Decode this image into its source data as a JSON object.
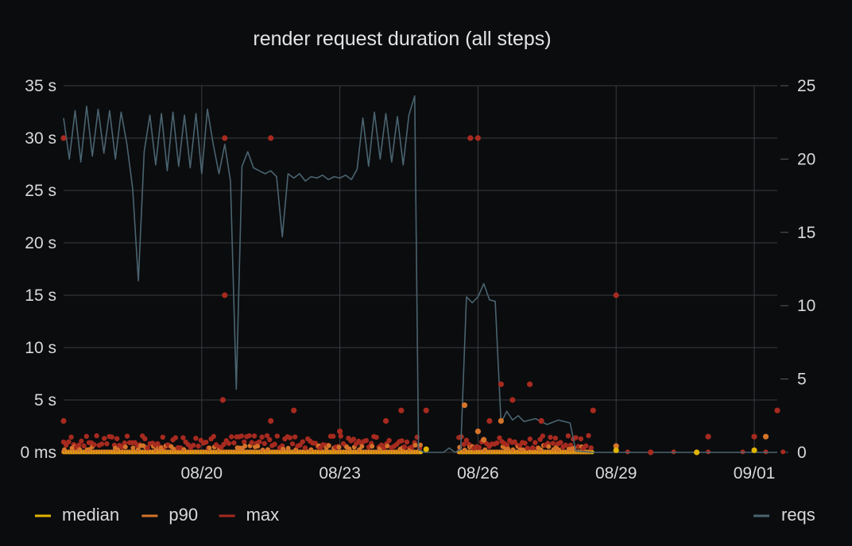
{
  "chart_data": {
    "type": "scatter",
    "title": "render request duration (all steps)",
    "xlabel": "",
    "ylabel": "",
    "y_left": {
      "unit": "s",
      "ylim": [
        0,
        35
      ],
      "ticks": [
        0,
        5,
        10,
        15,
        20,
        25,
        30,
        35
      ],
      "tick_labels": [
        "0 ms",
        "5 s",
        "10 s",
        "15 s",
        "20 s",
        "25 s",
        "30 s",
        "35 s"
      ]
    },
    "y_right": {
      "ylim": [
        0,
        25
      ],
      "ticks": [
        0,
        5,
        10,
        15,
        20,
        25
      ],
      "tick_labels": [
        "0",
        "5",
        "10",
        "15",
        "20",
        "25"
      ]
    },
    "x_axis": {
      "type": "date",
      "xlim": [
        "2023-08-17T00:00",
        "2023-09-01T12:00"
      ],
      "ticks": [
        "2023-08-20",
        "2023-08-23",
        "2023-08-26",
        "2023-08-29",
        "2023-09-01"
      ],
      "tick_labels": [
        "08/20",
        "08/23",
        "08/26",
        "08/29",
        "09/01"
      ]
    },
    "grid": true,
    "legend_left": [
      "median",
      "p90",
      "max"
    ],
    "legend_right": [
      "reqs"
    ],
    "legend_placement": "bottom",
    "colors": {
      "median": "#e0b400",
      "p90": "#d4742a",
      "max": "#a62a1f",
      "reqs": "#4a6470"
    },
    "series": [
      {
        "name": "reqs",
        "axis": "right",
        "style": "line",
        "points": [
          [
            "2023-08-17T00:00",
            22.8
          ],
          [
            "2023-08-17T03:00",
            20.0
          ],
          [
            "2023-08-17T06:00",
            23.3
          ],
          [
            "2023-08-17T09:00",
            19.8
          ],
          [
            "2023-08-17T12:00",
            23.6
          ],
          [
            "2023-08-17T15:00",
            20.2
          ],
          [
            "2023-08-17T18:00",
            23.4
          ],
          [
            "2023-08-17T21:00",
            20.4
          ],
          [
            "2023-08-18T00:00",
            23.3
          ],
          [
            "2023-08-18T03:00",
            20.0
          ],
          [
            "2023-08-18T06:00",
            23.2
          ],
          [
            "2023-08-18T09:00",
            21.0
          ],
          [
            "2023-08-18T12:00",
            18.0
          ],
          [
            "2023-08-18T15:00",
            11.7
          ],
          [
            "2023-08-18T18:00",
            20.5
          ],
          [
            "2023-08-18T21:00",
            23.0
          ],
          [
            "2023-08-19T00:00",
            19.6
          ],
          [
            "2023-08-19T03:00",
            23.1
          ],
          [
            "2023-08-19T06:00",
            19.2
          ],
          [
            "2023-08-19T09:00",
            23.2
          ],
          [
            "2023-08-19T12:00",
            19.5
          ],
          [
            "2023-08-19T15:00",
            23.0
          ],
          [
            "2023-08-19T18:00",
            19.4
          ],
          [
            "2023-08-19T21:00",
            23.1
          ],
          [
            "2023-08-20T00:00",
            19.0
          ],
          [
            "2023-08-20T03:00",
            23.4
          ],
          [
            "2023-08-20T06:00",
            21.0
          ],
          [
            "2023-08-20T09:00",
            19.0
          ],
          [
            "2023-08-20T12:00",
            21.0
          ],
          [
            "2023-08-20T15:00",
            18.5
          ],
          [
            "2023-08-20T18:00",
            4.3
          ],
          [
            "2023-08-20T21:00",
            19.5
          ],
          [
            "2023-08-21T00:00",
            20.5
          ],
          [
            "2023-08-21T03:00",
            19.4
          ],
          [
            "2023-08-21T06:00",
            19.2
          ],
          [
            "2023-08-21T09:00",
            19.0
          ],
          [
            "2023-08-21T12:00",
            19.2
          ],
          [
            "2023-08-21T15:00",
            18.8
          ],
          [
            "2023-08-21T18:00",
            14.7
          ],
          [
            "2023-08-21T21:00",
            19.0
          ],
          [
            "2023-08-22T00:00",
            18.7
          ],
          [
            "2023-08-22T03:00",
            19.0
          ],
          [
            "2023-08-22T06:00",
            18.5
          ],
          [
            "2023-08-22T09:00",
            18.8
          ],
          [
            "2023-08-22T12:00",
            18.7
          ],
          [
            "2023-08-22T15:00",
            18.9
          ],
          [
            "2023-08-22T18:00",
            18.6
          ],
          [
            "2023-08-22T21:00",
            18.8
          ],
          [
            "2023-08-23T00:00",
            18.7
          ],
          [
            "2023-08-23T03:00",
            18.9
          ],
          [
            "2023-08-23T06:00",
            18.6
          ],
          [
            "2023-08-23T09:00",
            19.3
          ],
          [
            "2023-08-23T12:00",
            22.8
          ],
          [
            "2023-08-23T15:00",
            19.5
          ],
          [
            "2023-08-23T18:00",
            23.2
          ],
          [
            "2023-08-23T21:00",
            20.0
          ],
          [
            "2023-08-24T00:00",
            23.1
          ],
          [
            "2023-08-24T03:00",
            19.8
          ],
          [
            "2023-08-24T06:00",
            22.9
          ],
          [
            "2023-08-24T09:00",
            19.6
          ],
          [
            "2023-08-24T12:00",
            23.0
          ],
          [
            "2023-08-24T15:00",
            24.3
          ],
          [
            "2023-08-24T17:00",
            0.2
          ],
          [
            "2023-08-24T20:00",
            0.0
          ],
          [
            "2023-08-25T06:00",
            0.0
          ],
          [
            "2023-08-25T09:00",
            0.3
          ],
          [
            "2023-08-25T12:00",
            0.0
          ],
          [
            "2023-08-25T15:00",
            0.2
          ],
          [
            "2023-08-25T18:00",
            10.6
          ],
          [
            "2023-08-25T21:00",
            10.2
          ],
          [
            "2023-08-26T00:00",
            10.6
          ],
          [
            "2023-08-26T03:00",
            11.5
          ],
          [
            "2023-08-26T06:00",
            10.4
          ],
          [
            "2023-08-26T09:00",
            10.3
          ],
          [
            "2023-08-26T12:00",
            2.0
          ],
          [
            "2023-08-26T15:00",
            2.8
          ],
          [
            "2023-08-26T18:00",
            2.2
          ],
          [
            "2023-08-26T21:00",
            2.5
          ],
          [
            "2023-08-27T00:00",
            2.1
          ],
          [
            "2023-08-27T06:00",
            2.3
          ],
          [
            "2023-08-27T12:00",
            1.9
          ],
          [
            "2023-08-27T18:00",
            2.2
          ],
          [
            "2023-08-28T00:00",
            2.0
          ],
          [
            "2023-08-28T03:00",
            0.1
          ],
          [
            "2023-08-28T12:00",
            0.0
          ],
          [
            "2023-08-29T12:00",
            0.0
          ],
          [
            "2023-08-31T00:00",
            0.0
          ],
          [
            "2023-09-01T12:00",
            0.0
          ]
        ]
      },
      {
        "name": "max",
        "axis": "left",
        "style": "points",
        "points": [
          [
            "2023-08-17T00:00",
            30.0
          ],
          [
            "2023-08-17T00:00",
            3.0
          ],
          [
            "2023-08-20T12:00",
            30.0
          ],
          [
            "2023-08-21T12:00",
            30.0
          ],
          [
            "2023-08-20T12:00",
            15.0
          ],
          [
            "2023-08-20T11:00",
            5.0
          ],
          [
            "2023-08-22T00:00",
            4.0
          ],
          [
            "2023-08-21T12:00",
            3.0
          ],
          [
            "2023-08-23T00:00",
            2.0
          ],
          [
            "2023-08-24T00:00",
            3.0
          ],
          [
            "2023-08-24T08:00",
            4.0
          ],
          [
            "2023-08-24T21:00",
            4.0
          ],
          [
            "2023-08-25T20:00",
            30.0
          ],
          [
            "2023-08-26T00:00",
            30.0
          ],
          [
            "2023-08-26T06:00",
            3.0
          ],
          [
            "2023-08-26T12:00",
            6.5
          ],
          [
            "2023-08-26T18:00",
            5.0
          ],
          [
            "2023-08-27T03:00",
            6.5
          ],
          [
            "2023-08-27T09:00",
            3.0
          ],
          [
            "2023-08-28T12:00",
            4.0
          ],
          [
            "2023-08-29T00:00",
            15.0
          ],
          [
            "2023-08-29T18:00",
            0.0
          ],
          [
            "2023-08-31T00:00",
            1.5
          ],
          [
            "2023-09-01T00:00",
            1.5
          ],
          [
            "2023-09-01T12:00",
            4.0
          ]
        ]
      },
      {
        "name": "p90",
        "axis": "left",
        "style": "points",
        "points": [
          [
            "2023-08-25T17:00",
            4.5
          ],
          [
            "2023-08-26T12:00",
            3.0
          ],
          [
            "2023-08-26T00:00",
            2.0
          ],
          [
            "2023-08-26T03:00",
            1.2
          ],
          [
            "2023-08-29T00:00",
            0.6
          ],
          [
            "2023-09-01T06:00",
            1.5
          ]
        ]
      },
      {
        "name": "median",
        "axis": "left",
        "style": "points",
        "points": [
          [
            "2023-08-24T21:00",
            0.3
          ],
          [
            "2023-08-29T00:00",
            0.2
          ],
          [
            "2023-08-30T18:00",
            0.0
          ],
          [
            "2023-09-01T00:00",
            0.2
          ]
        ]
      }
    ]
  }
}
